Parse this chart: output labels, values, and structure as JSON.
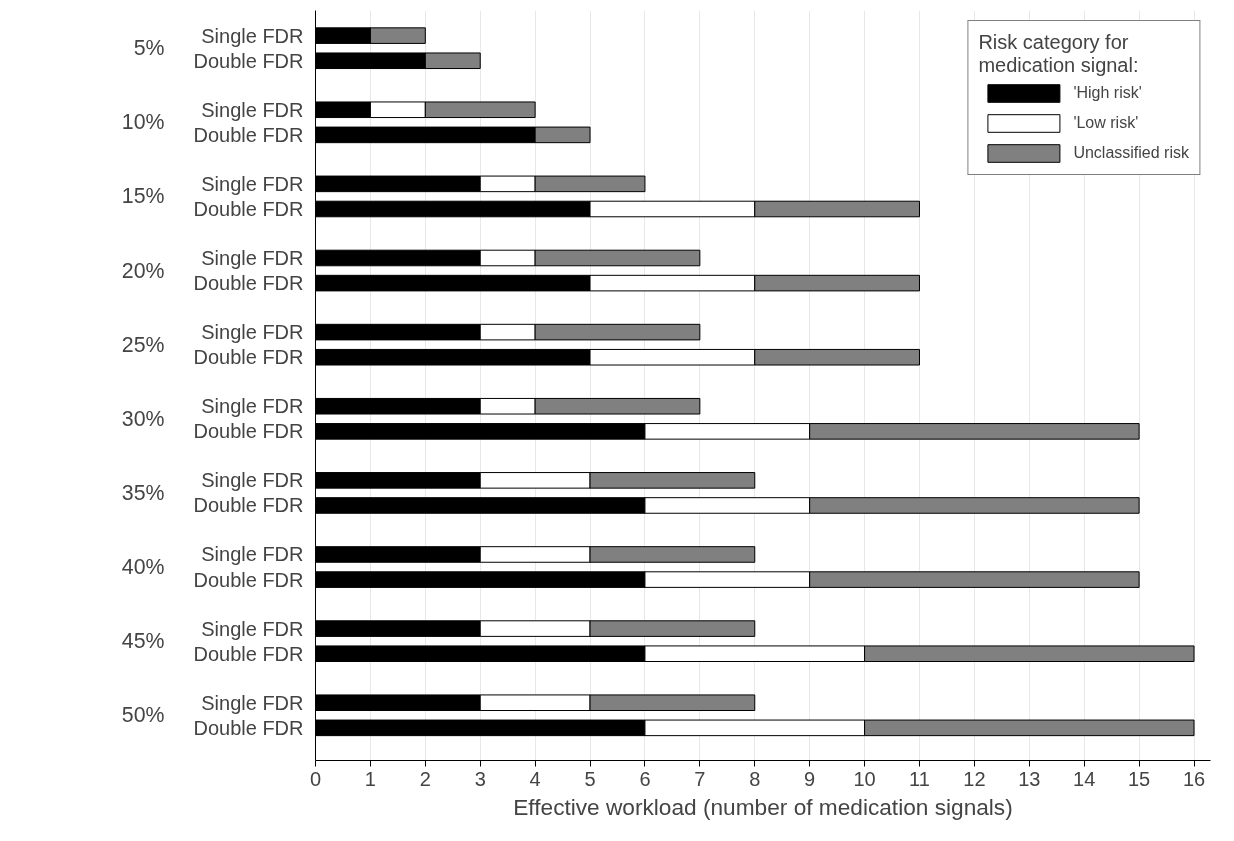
{
  "chart_data": {
    "type": "bar",
    "orientation": "horizontal",
    "stacked": true,
    "categories": [
      "Single FDR",
      "Double FDR",
      "Single FDR",
      "Double FDR",
      "Single FDR",
      "Double FDR",
      "Single FDR",
      "Double FDR",
      "Single FDR",
      "Double FDR",
      "Single FDR",
      "Double FDR",
      "Single FDR",
      "Double FDR",
      "Single FDR",
      "Double FDR",
      "Single FDR",
      "Double FDR",
      "Single FDR",
      "Double FDR"
    ],
    "series": [
      {
        "name": "'High risk'",
        "color": "#000000",
        "values": [
          1,
          2,
          1,
          4,
          3,
          5,
          3,
          5,
          3,
          5,
          3,
          6,
          3,
          6,
          3,
          6,
          3,
          6,
          3,
          6
        ]
      },
      {
        "name": "'Low risk'",
        "color": "#ffffff",
        "values": [
          0,
          0,
          1,
          0,
          1,
          3,
          1,
          3,
          1,
          3,
          1,
          3,
          2,
          3,
          2,
          3,
          2,
          4,
          2,
          4
        ]
      },
      {
        "name": "Unclassified risk",
        "color": "#808080",
        "values": [
          1,
          1,
          2,
          1,
          2,
          3,
          3,
          3,
          3,
          3,
          3,
          6,
          3,
          6,
          3,
          6,
          3,
          6,
          3,
          6
        ]
      }
    ],
    "annotations": [
      "5%",
      "10%",
      "15%",
      "20%",
      "25%",
      "30%",
      "35%",
      "40%",
      "45%",
      "50%"
    ],
    "xlabel": "Effective workload (number of medication signals)",
    "legend_title": "Risk category for medication signal:",
    "xlim": [
      0,
      16.3
    ],
    "xticks": [
      0,
      1,
      2,
      3,
      4,
      5,
      6,
      7,
      8,
      9,
      10,
      11,
      12,
      13,
      14,
      15,
      16
    ],
    "grid": "x",
    "legend": "top right"
  }
}
